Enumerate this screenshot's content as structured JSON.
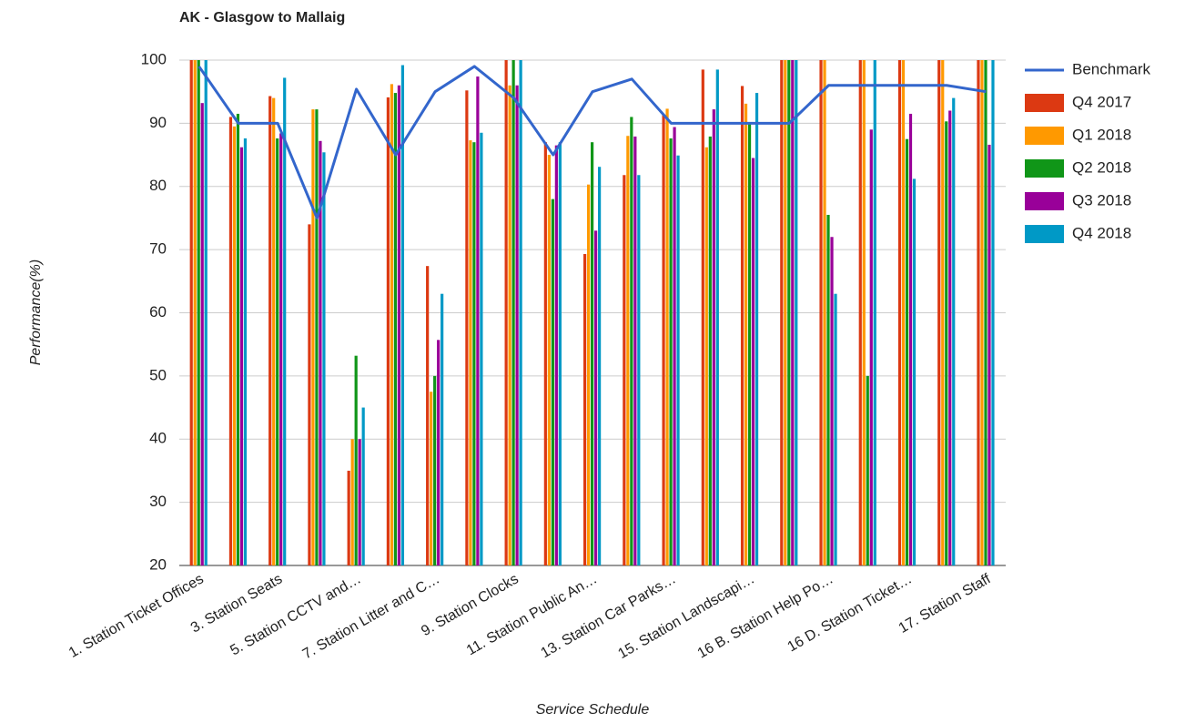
{
  "chart_data": {
    "type": "bar",
    "title": "AK - Glasgow to Mallaig",
    "x_label": "Service Schedule",
    "y_label": "Performance(%)",
    "categories": [
      "1. Station Ticket Offices",
      null,
      "3. Station Seats",
      null,
      "5. Station CCTV and…",
      null,
      "7. Station Litter and C…",
      null,
      "9. Station Clocks",
      null,
      "11. Station Public An…",
      null,
      "13. Station Car Parks…",
      null,
      "15. Station Landscapi…",
      null,
      "16 B. Station Help Po…",
      null,
      "16 D. Station Ticket…",
      null,
      "17. Station Staff"
    ],
    "ylim": [
      20,
      100
    ],
    "yticks": [
      20,
      30,
      40,
      50,
      60,
      70,
      80,
      90,
      100
    ],
    "grid": true,
    "legend": "right",
    "series": [
      {
        "name": "Benchmark",
        "type": "line",
        "color": "#3366cc",
        "values": [
          99,
          90,
          90,
          75,
          95.4,
          85,
          95,
          99,
          94,
          85,
          95,
          97,
          90,
          90,
          90,
          90,
          96,
          96,
          96,
          96,
          95
        ]
      },
      {
        "name": "Q4 2017",
        "type": "bar",
        "color": "#dc3912",
        "values": [
          100,
          91,
          94.3,
          74,
          35,
          94.1,
          67.4,
          95.2,
          100,
          87,
          69.3,
          81.8,
          91.3,
          98.5,
          95.9,
          100,
          100,
          100,
          100,
          100,
          100
        ]
      },
      {
        "name": "Q1 2018",
        "type": "bar",
        "color": "#ff9900",
        "values": [
          100,
          89.5,
          94,
          92.2,
          40,
          96.2,
          47.5,
          87.3,
          96,
          85,
          80.3,
          88,
          92.3,
          86.2,
          93.1,
          100,
          100,
          100,
          100,
          100,
          100
        ]
      },
      {
        "name": "Q2 2018",
        "type": "bar",
        "color": "#109618",
        "values": [
          100,
          91.5,
          87.6,
          92.2,
          53.2,
          94.8,
          50,
          87,
          100,
          78,
          87,
          91,
          87.6,
          87.9,
          90,
          100,
          75.5,
          50,
          87.5,
          90.3,
          100
        ]
      },
      {
        "name": "Q3 2018",
        "type": "bar",
        "color": "#990099",
        "values": [
          93.2,
          86.2,
          88.4,
          87.2,
          40,
          96,
          55.7,
          97.4,
          96,
          86.5,
          73,
          87.9,
          89.4,
          92.2,
          84.5,
          100,
          72,
          89,
          91.5,
          92,
          86.6
        ]
      },
      {
        "name": "Q4 2018",
        "type": "bar",
        "color": "#0099c6",
        "values": [
          100,
          87.6,
          97.2,
          85.4,
          45,
          99.2,
          63,
          88.5,
          100,
          87,
          83.1,
          81.8,
          84.9,
          98.5,
          94.8,
          100,
          63,
          100,
          81.2,
          94,
          100
        ]
      }
    ]
  }
}
